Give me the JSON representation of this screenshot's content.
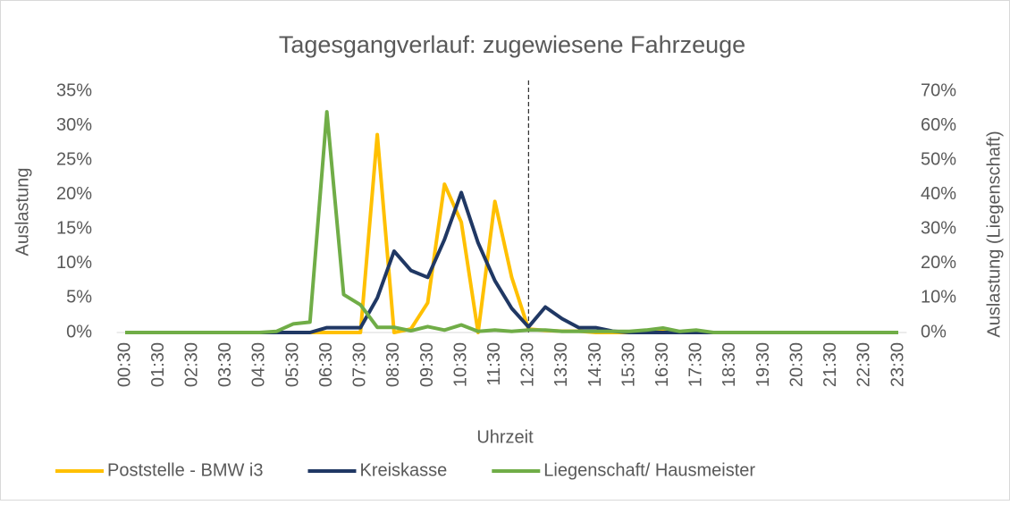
{
  "chart_data": {
    "type": "line",
    "title": "Tagesgangverlauf: zugewiesene Fahrzeuge",
    "x_label": "Uhrzeit",
    "y_label": "Auslastung",
    "y2_label": "Auslastung (Liegenschaft)",
    "categories": [
      "00:30",
      null,
      "01:30",
      null,
      "02:30",
      null,
      "03:30",
      null,
      "04:30",
      null,
      "05:30",
      null,
      "06:30",
      null,
      "07:30",
      null,
      "08:30",
      null,
      "09:30",
      null,
      "10:30",
      null,
      "11:30",
      null,
      "12:30",
      null,
      "13:30",
      null,
      "14:30",
      null,
      "15:30",
      null,
      "16:30",
      null,
      "17:30",
      null,
      "18:30",
      null,
      "19:30",
      null,
      "20:30",
      null,
      "21:30",
      null,
      "22:30",
      null,
      "23:30"
    ],
    "reference_x": "12:30",
    "ylim": [
      0,
      35
    ],
    "yticks": [
      {
        "value": 0,
        "label": "0%"
      },
      {
        "value": 5,
        "label": "5%"
      },
      {
        "value": 10,
        "label": "10%"
      },
      {
        "value": 15,
        "label": "15%"
      },
      {
        "value": 20,
        "label": "20%"
      },
      {
        "value": 25,
        "label": "25%"
      },
      {
        "value": 30,
        "label": "30%"
      },
      {
        "value": 35,
        "label": "35%"
      }
    ],
    "y2lim": [
      0,
      70
    ],
    "y2ticks": [
      {
        "value": 0,
        "label": "0%"
      },
      {
        "value": 10,
        "label": "10%"
      },
      {
        "value": 20,
        "label": "20%"
      },
      {
        "value": 30,
        "label": "30%"
      },
      {
        "value": 40,
        "label": "40%"
      },
      {
        "value": 50,
        "label": "50%"
      },
      {
        "value": 60,
        "label": "60%"
      },
      {
        "value": 70,
        "label": "70%"
      }
    ],
    "legend": "bottom",
    "series": [
      {
        "name": "Poststelle - BMW i3",
        "color": "#FFC000",
        "axis": "y",
        "values": [
          0,
          0,
          0,
          0,
          0,
          0,
          0,
          0,
          0,
          0,
          0,
          0,
          0,
          0,
          0,
          28.7,
          0,
          0.5,
          4.3,
          21.5,
          16,
          0,
          19,
          8,
          0.5,
          0.3,
          0.2,
          0.2,
          0,
          0,
          0,
          0.3,
          0.5,
          0,
          0,
          0,
          0,
          0,
          0,
          0,
          0,
          0,
          0,
          0,
          0,
          0,
          0
        ]
      },
      {
        "name": "Kreiskasse",
        "color": "#203864",
        "axis": "y",
        "values": [
          0,
          0,
          0,
          0,
          0,
          0,
          0,
          0,
          0,
          0,
          0,
          0,
          0.7,
          0.7,
          0.7,
          5,
          11.8,
          9,
          8,
          13.5,
          20.3,
          13,
          7.5,
          3.5,
          0.8,
          3.7,
          2,
          0.7,
          0.7,
          0.2,
          0,
          0,
          0,
          0,
          0,
          0,
          0,
          0,
          0,
          0,
          0,
          0,
          0,
          0,
          0,
          0,
          0
        ]
      },
      {
        "name": "Liegenschaft/ Hausmeister",
        "color": "#70AD47",
        "axis": "y2",
        "values": [
          0,
          0,
          0,
          0,
          0,
          0,
          0,
          0,
          0,
          0.3,
          2.5,
          3,
          64,
          11,
          8,
          1.5,
          1.5,
          0.5,
          1.7,
          0.7,
          2.2,
          0.3,
          0.7,
          0.3,
          0.7,
          0.7,
          0.3,
          0.3,
          0.3,
          0.3,
          0.3,
          0.7,
          1.3,
          0.3,
          0.7,
          0,
          0,
          0,
          0,
          0,
          0,
          0,
          0,
          0,
          0,
          0,
          0
        ]
      }
    ]
  }
}
